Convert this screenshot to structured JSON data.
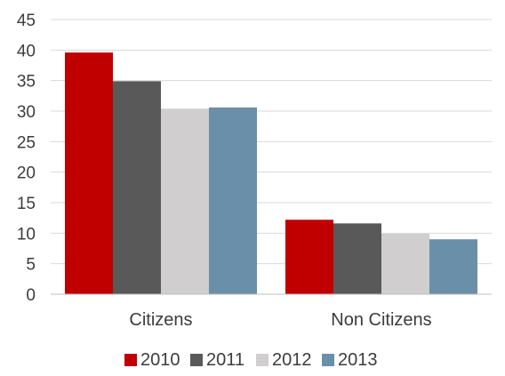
{
  "chart_data": {
    "type": "bar",
    "categories": [
      "Citizens",
      "Non Citizens"
    ],
    "series": [
      {
        "name": "2010",
        "color": "#c00000",
        "values": [
          39.6,
          12.2
        ]
      },
      {
        "name": "2011",
        "color": "#595959",
        "values": [
          34.9,
          11.6
        ]
      },
      {
        "name": "2012",
        "color": "#d0cece",
        "values": [
          30.4,
          9.9
        ]
      },
      {
        "name": "2013",
        "color": "#6a8fa8",
        "values": [
          30.6,
          9.0
        ]
      }
    ],
    "yticks": [
      0,
      5,
      10,
      15,
      20,
      25,
      30,
      35,
      40,
      45
    ],
    "ylim": [
      0,
      45
    ],
    "grid": true,
    "legend_position": "bottom"
  }
}
